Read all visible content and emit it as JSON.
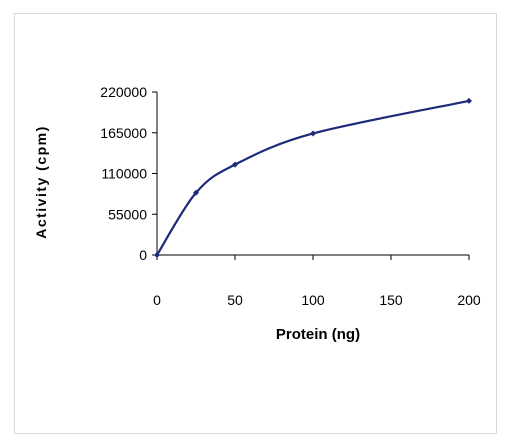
{
  "chart_data": {
    "type": "line",
    "title": "",
    "xlabel": "Protein (ng)",
    "ylabel": "Activity (cpm)",
    "x": [
      0,
      25,
      50,
      100,
      200
    ],
    "series": [
      {
        "values": [
          0,
          84000,
          122000,
          164000,
          208000
        ]
      }
    ],
    "xlim": [
      0,
      200
    ],
    "ylim": [
      0,
      220000
    ],
    "xticks": [
      0,
      50,
      100,
      150,
      200
    ],
    "yticks": [
      0,
      55000,
      110000,
      165000,
      220000
    ],
    "grid": false,
    "legend": "none",
    "line_color": "#1f2a7a"
  }
}
